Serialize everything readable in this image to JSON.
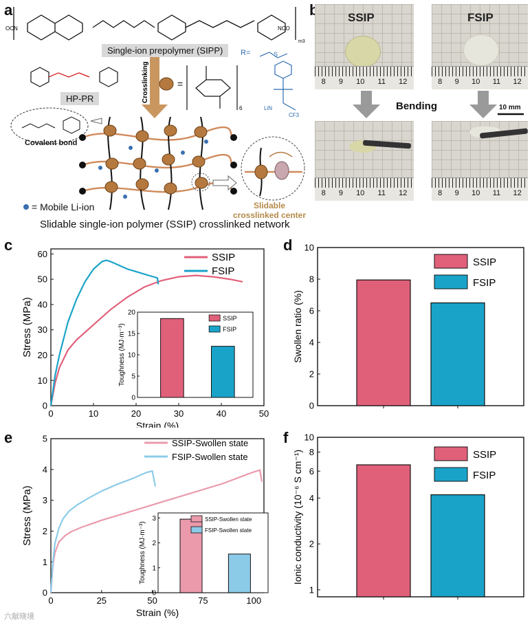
{
  "panel_letters": [
    "a",
    "b",
    "c",
    "d",
    "e",
    "f"
  ],
  "panel_a": {
    "prepolymer_label": "Single-ion prepolymer (SIPP)",
    "crosslinking_label": "Crosslinking",
    "hp_pr_label": "HP-PR",
    "covalent_label": "Covalent bond",
    "mobile_li_label": "= Mobile Li-ion",
    "sliding_center_label": "Slidable crosslinked center",
    "network_title": "Slidable single-ion polymer (SSIP) crosslinked network",
    "r_group": "R=",
    "ocn": "OCN",
    "nco": "NCO",
    "subscript_6": "6",
    "subscript_m3": "m3",
    "chem_labels": [
      "LiN",
      "CF3",
      "O",
      "S"
    ]
  },
  "panel_b": {
    "ssip_label": "SSIP",
    "fsip_label": "FSIP",
    "bending_label": "Bending",
    "scale_label": "10 mm",
    "ruler_numbers": [
      "8",
      "9",
      "10",
      "11",
      "12"
    ]
  },
  "colors": {
    "ssip": "#e0607a",
    "fsip": "#1aa3c9",
    "ssip_swollen": "#ea9aab",
    "fsip_swollen": "#8ccbe8",
    "photo_arrow": "#9a9a9a",
    "bead": "#b5793f"
  },
  "chart_data": [
    {
      "id": "c",
      "type": "line",
      "xlabel": "Strain (%)",
      "ylabel": "Stress (MPa)",
      "xlim": [
        0,
        50
      ],
      "ylim": [
        0,
        62
      ],
      "xticks": [
        0,
        10,
        20,
        30,
        40,
        50
      ],
      "yticks": [
        0,
        10,
        20,
        30,
        40,
        50,
        60
      ],
      "series": [
        {
          "name": "SSIP",
          "x": [
            0,
            1,
            2,
            4,
            6,
            8,
            10,
            14,
            18,
            22,
            26,
            30,
            34,
            38,
            42,
            45
          ],
          "y": [
            0,
            9,
            15,
            22,
            26,
            29,
            32,
            38,
            43,
            47,
            49.5,
            51,
            51.5,
            51,
            50,
            49
          ]
        },
        {
          "name": "FSIP",
          "x": [
            0,
            1,
            2,
            4,
            6,
            8,
            10,
            12,
            13,
            14,
            16,
            18,
            20,
            22,
            24,
            25,
            25.2
          ],
          "y": [
            0,
            12,
            20,
            33,
            42,
            49,
            54,
            57,
            57.5,
            57,
            55.5,
            54,
            53,
            52,
            51,
            50.5,
            48
          ]
        }
      ],
      "inset": {
        "type": "bar",
        "ylabel": "Toughness (MJ·m⁻³)",
        "ylim": [
          0,
          20
        ],
        "yticks": [
          0,
          5,
          10,
          15,
          20
        ],
        "categories": [
          "SSIP",
          "FSIP"
        ],
        "values": [
          18.5,
          12
        ]
      }
    },
    {
      "id": "d",
      "type": "bar",
      "xlabel": "",
      "ylabel": "Swollen ratio (%)",
      "ylim": [
        0,
        10
      ],
      "yticks": [
        0,
        2,
        4,
        6,
        8,
        10
      ],
      "categories": [
        "SSIP",
        "FSIP"
      ],
      "values": [
        7.95,
        6.5
      ]
    },
    {
      "id": "e",
      "type": "line",
      "xlabel": "Strain (%)",
      "ylabel": "Stress (MPa)",
      "xlim": [
        0,
        105
      ],
      "ylim": [
        0,
        5
      ],
      "xticks": [
        0,
        25,
        50,
        75,
        100
      ],
      "yticks": [
        0,
        1,
        2,
        3,
        4,
        5
      ],
      "series": [
        {
          "name": "SSIP-Swollen state",
          "x": [
            0,
            1,
            2,
            4,
            7,
            10,
            15,
            25,
            40,
            55,
            70,
            85,
            95,
            100,
            103,
            104
          ],
          "y": [
            0,
            0.9,
            1.3,
            1.65,
            1.85,
            1.98,
            2.12,
            2.35,
            2.65,
            2.95,
            3.25,
            3.55,
            3.8,
            3.92,
            3.98,
            3.6
          ]
        },
        {
          "name": "FSIP-Swollen state",
          "x": [
            0,
            1,
            2,
            4,
            6,
            9,
            13,
            18,
            25,
            32,
            40,
            47,
            50,
            51.5
          ],
          "y": [
            0,
            1.0,
            1.6,
            2.1,
            2.4,
            2.65,
            2.85,
            3.05,
            3.3,
            3.5,
            3.7,
            3.9,
            3.95,
            3.45
          ]
        }
      ],
      "inset": {
        "type": "bar",
        "ylabel": "Toughness (MJ·m⁻³)",
        "ylim": [
          0,
          3.2
        ],
        "yticks": [
          0,
          1,
          2,
          3
        ],
        "categories": [
          "SSIP-Swollen state",
          "FSIP-Swollen state"
        ],
        "values": [
          2.95,
          1.55
        ]
      }
    },
    {
      "id": "f",
      "type": "bar",
      "xlabel": "",
      "ylabel": "Ionic conductivity (10⁻⁶ S cm⁻¹)",
      "yscale": "log",
      "ylim": [
        0.9,
        10
      ],
      "yticks": [
        1,
        2,
        4,
        6,
        8,
        10
      ],
      "categories": [
        "SSIP",
        "FSIP"
      ],
      "values": [
        6.6,
        4.2
      ]
    }
  ],
  "watermark": "六献晓境"
}
